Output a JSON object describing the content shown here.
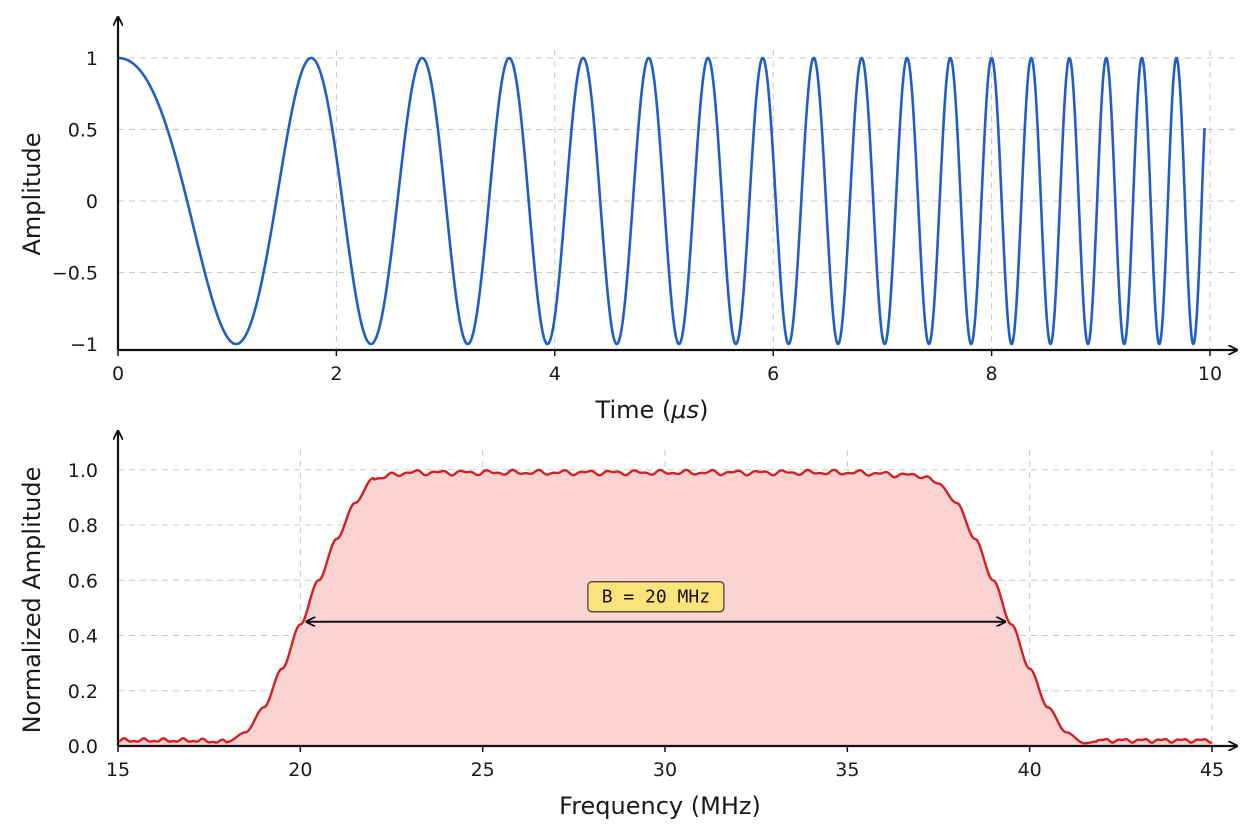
{
  "chart_data": [
    {
      "type": "line",
      "xlabel": "Time (",
      "xlabel_mu": "μs",
      "xlabel_end": ")",
      "ylabel": "Amplitude",
      "xlim": [
        0,
        10
      ],
      "ylim": [
        -1,
        1
      ],
      "x_ticks": [
        "0",
        "2",
        "4",
        "6",
        "8",
        "10"
      ],
      "y_ticks": [
        "1",
        "0.5",
        "0",
        "−0.5",
        "−1"
      ],
      "grid": true,
      "color": "#1f5fc4",
      "series": [
        {
          "signal": "linear chirp cos(2π(f0·t + k·t²/2))",
          "f0_mhz": 0.3,
          "k_mhz_per_us": 0.3,
          "t_range_us": [
            0,
            9.95
          ]
        }
      ]
    },
    {
      "type": "area",
      "xlabel": "Frequency (MHz)",
      "ylabel": "Normalized Amplitude",
      "xlim": [
        15,
        45
      ],
      "ylim": [
        0,
        1.05
      ],
      "x_ticks": [
        "15",
        "20",
        "25",
        "30",
        "35",
        "40",
        "45"
      ],
      "y_ticks": [
        "1.0",
        "0.8",
        "0.6",
        "0.4",
        "0.2",
        "0.0"
      ],
      "grid": true,
      "line_color": "#d42020",
      "fill_color": "#fbd3d3",
      "series": [
        {
          "x": [
            15,
            16,
            17,
            18,
            18.5,
            19,
            19.5,
            20,
            20.5,
            21,
            21.5,
            22,
            23,
            25,
            30,
            35,
            37,
            37.5,
            38,
            38.5,
            39,
            39.5,
            40,
            40.5,
            41,
            41.5,
            42,
            43,
            44,
            45
          ],
          "y": [
            0.02,
            0.02,
            0.02,
            0.015,
            0.05,
            0.14,
            0.28,
            0.44,
            0.6,
            0.75,
            0.88,
            0.97,
            0.99,
            0.99,
            0.99,
            0.99,
            0.98,
            0.95,
            0.88,
            0.75,
            0.6,
            0.44,
            0.28,
            0.14,
            0.05,
            0.01,
            0.02,
            0.02,
            0.02,
            0.02
          ]
        }
      ],
      "annotation": {
        "text": "B = 20 MHz",
        "x_start": 20.2,
        "x_end": 39.3,
        "y": 0.45,
        "label_bg": "#fbe27a"
      }
    }
  ]
}
